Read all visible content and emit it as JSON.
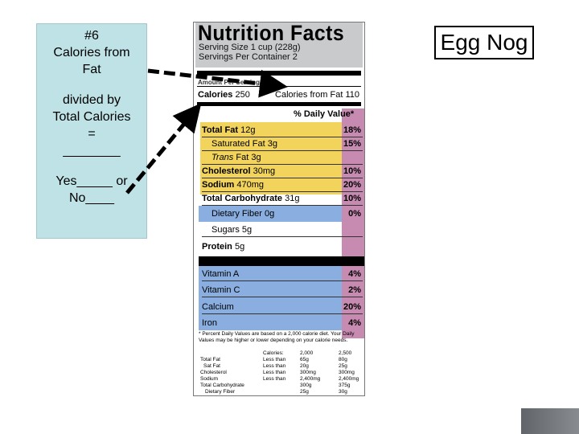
{
  "card": {
    "lines": [
      "#6",
      "Calories from",
      "Fat",
      "",
      "divided by",
      "Total Calories",
      "=",
      "________",
      "",
      "Yes_____ or",
      "No____"
    ]
  },
  "title": "Egg Nog",
  "label": {
    "heading": "Nutrition Facts",
    "serving_size": "Serving Size 1 cup (228g)",
    "servings_per_container": "Servings Per Container  2",
    "amount_per_serving": "Amount Per Serving",
    "calories_label": "Calories",
    "calories_value": "250",
    "calories_fat": "Calories from Fat 110",
    "dv_header": "% Daily Value*",
    "nutrients": [
      {
        "name": "Total Fat",
        "amount": "12g",
        "pct": "18%"
      },
      {
        "name": "Saturated Fat",
        "amount": "3g",
        "pct": "15%"
      },
      {
        "name": "Trans",
        "amount": "Fat 3g",
        "pct": ""
      },
      {
        "name": "Cholesterol",
        "amount": "30mg",
        "pct": "10%"
      },
      {
        "name": "Sodium",
        "amount": "470mg",
        "pct": "20%"
      },
      {
        "name": "Total Carbohydrate",
        "amount": "31g",
        "pct": "10%"
      },
      {
        "name": "Dietary Fiber",
        "amount": "0g",
        "pct": "0%"
      },
      {
        "name": "Sugars",
        "amount": "5g",
        "pct": ""
      },
      {
        "name": "Protein",
        "amount": "5g",
        "pct": ""
      }
    ],
    "vitamins": [
      {
        "name": "Vitamin A",
        "pct": "4%"
      },
      {
        "name": "Vitamin C",
        "pct": "2%"
      },
      {
        "name": "Calcium",
        "pct": "20%"
      },
      {
        "name": "Iron",
        "pct": "4%"
      }
    ],
    "footnote": "* Percent Daily Values are based on a 2,000 calorie diet. Your Daily Values may be higher or lower depending on your calorie needs.",
    "table": {
      "header": [
        "Calories:",
        "2,000",
        "2,500"
      ],
      "rows": [
        [
          "Total Fat",
          "Less than",
          "65g",
          "80g"
        ],
        [
          "Sat Fat",
          "Less than",
          "20g",
          "25g"
        ],
        [
          "Cholesterol",
          "Less than",
          "300mg",
          "300mg"
        ],
        [
          "Sodium",
          "Less than",
          "2,400mg",
          "2,400mg"
        ],
        [
          "Total Carbohydrate",
          "",
          "300g",
          "375g"
        ],
        [
          "Dietary Fiber",
          "",
          "25g",
          "30g"
        ]
      ]
    }
  }
}
